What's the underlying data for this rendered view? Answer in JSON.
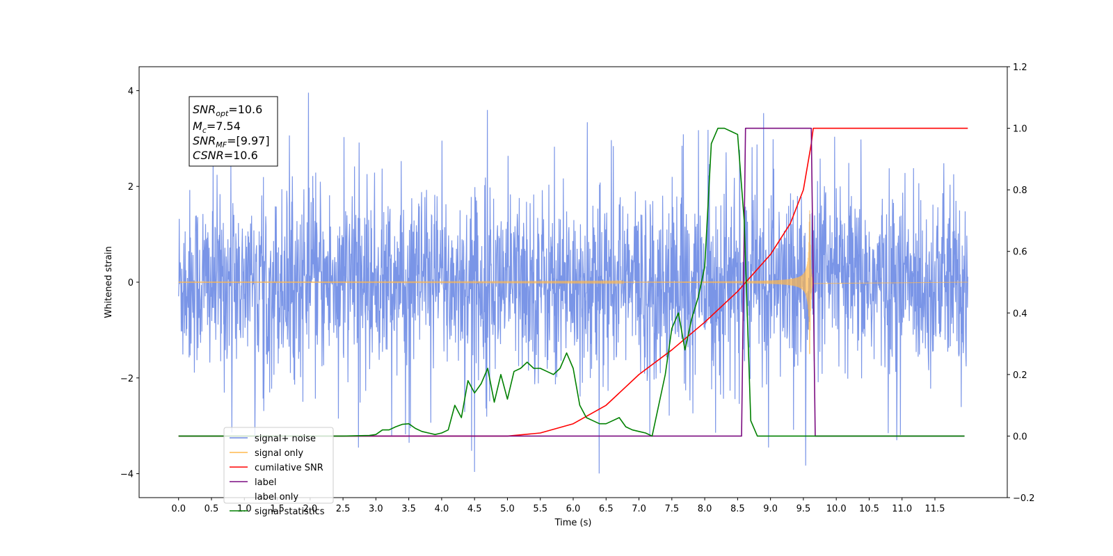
{
  "chart_data": {
    "type": "line",
    "title": "",
    "xlabel": "Time (s)",
    "ylabel": "Whitened strain",
    "y2label": "",
    "xlim": [
      -0.6,
      12.6
    ],
    "ylim": [
      -4.5,
      4.5
    ],
    "y2lim": [
      -0.2,
      1.2
    ],
    "xticks": [
      "0.0",
      "0.5",
      "1.0",
      "1.5",
      "2.0",
      "2.5",
      "3.0",
      "3.5",
      "4.0",
      "4.5",
      "5.0",
      "5.5",
      "6.0",
      "6.5",
      "7.0",
      "7.5",
      "8.0",
      "8.5",
      "9.0",
      "9.5",
      "10.0",
      "10.5",
      "11.0",
      "11.5"
    ],
    "yticks": [
      "4",
      "2",
      "0",
      "−2",
      "−4"
    ],
    "y2ticks": [
      "1.2",
      "1.0",
      "0.8",
      "0.6",
      "0.4",
      "0.2",
      "0.0",
      "−0.2"
    ],
    "grid": false,
    "legend_position": "lower-left",
    "annotation": {
      "snr_opt": {
        "base": "SNR",
        "sub": "opt",
        "value": "=10.6"
      },
      "mc": {
        "base": "M",
        "sub": "c",
        "value": "=7.54"
      },
      "snr_mf": {
        "base": "SNR",
        "sub": "MF",
        "value": "=[9.97]"
      },
      "csnr": {
        "base": "CSNR",
        "value": "=10.6"
      }
    },
    "series": [
      {
        "name": "signal+ noise",
        "color": "#6c8ae4",
        "axis": "left",
        "kind": "noise",
        "x_range": [
          0.0,
          12.0
        ],
        "envelope": [
          -1.5,
          1.5
        ],
        "extremes": [
          -4.1,
          4.1
        ]
      },
      {
        "name": "signal only",
        "color": "#ffb84d",
        "axis": "left",
        "kind": "chirp",
        "x_range": [
          0.0,
          9.65
        ],
        "amplitude_peak": 1.5,
        "merger_time": 9.6
      },
      {
        "name": "cumilative SNR",
        "color": "#ff0000",
        "axis": "right",
        "x": [
          0.0,
          5.0,
          5.5,
          6.0,
          6.5,
          7.0,
          7.5,
          8.0,
          8.5,
          9.0,
          9.3,
          9.5,
          9.62,
          9.65,
          12.0
        ],
        "y": [
          0.0,
          0.0,
          0.01,
          0.04,
          0.1,
          0.2,
          0.28,
          0.37,
          0.47,
          0.59,
          0.69,
          0.8,
          0.95,
          1.0,
          1.0
        ]
      },
      {
        "name": "label",
        "color": "#7b0b80",
        "axis": "right",
        "x": [
          0.0,
          8.56,
          8.62,
          9.62,
          9.68,
          11.95
        ],
        "y": [
          0.0,
          0.0,
          1.0,
          1.0,
          0.0,
          0.0
        ]
      },
      {
        "name": "label only",
        "color": "#ffffff",
        "axis": "right",
        "x": [],
        "y": []
      },
      {
        "name": "signal statistics",
        "color": "#008000",
        "axis": "right",
        "x": [
          0.0,
          2.5,
          2.9,
          3.0,
          3.1,
          3.2,
          3.3,
          3.4,
          3.5,
          3.6,
          3.7,
          3.8,
          3.9,
          4.0,
          4.1,
          4.2,
          4.3,
          4.4,
          4.5,
          4.6,
          4.7,
          4.8,
          4.9,
          5.0,
          5.1,
          5.2,
          5.3,
          5.4,
          5.5,
          5.6,
          5.7,
          5.8,
          5.9,
          6.0,
          6.1,
          6.2,
          6.3,
          6.4,
          6.5,
          6.6,
          6.7,
          6.8,
          6.9,
          7.0,
          7.1,
          7.2,
          7.3,
          7.4,
          7.5,
          7.6,
          7.7,
          7.8,
          7.9,
          8.0,
          8.1,
          8.2,
          8.3,
          8.4,
          8.5,
          8.6,
          8.7,
          8.8,
          8.9,
          9.0,
          9.1,
          9.2,
          9.3,
          9.4,
          9.5,
          9.6,
          9.7,
          9.8,
          9.9,
          10.0,
          11.95
        ],
        "y": [
          0.0,
          0.0,
          0.002,
          0.005,
          0.02,
          0.02,
          0.03,
          0.038,
          0.04,
          0.025,
          0.015,
          0.01,
          0.005,
          0.01,
          0.02,
          0.1,
          0.06,
          0.18,
          0.14,
          0.17,
          0.22,
          0.11,
          0.2,
          0.12,
          0.21,
          0.22,
          0.24,
          0.22,
          0.22,
          0.21,
          0.2,
          0.22,
          0.27,
          0.22,
          0.1,
          0.06,
          0.05,
          0.04,
          0.04,
          0.05,
          0.06,
          0.03,
          0.02,
          0.015,
          0.01,
          0.0,
          0.1,
          0.2,
          0.35,
          0.4,
          0.28,
          0.38,
          0.45,
          0.55,
          0.95,
          1.0,
          1.0,
          0.99,
          0.98,
          0.7,
          0.05,
          0.0,
          0.0,
          0.0,
          0.0,
          0.0,
          0.0,
          0.0,
          0.0,
          0.0,
          0.0,
          0.0,
          0.0,
          0.0,
          0.0
        ]
      }
    ]
  }
}
